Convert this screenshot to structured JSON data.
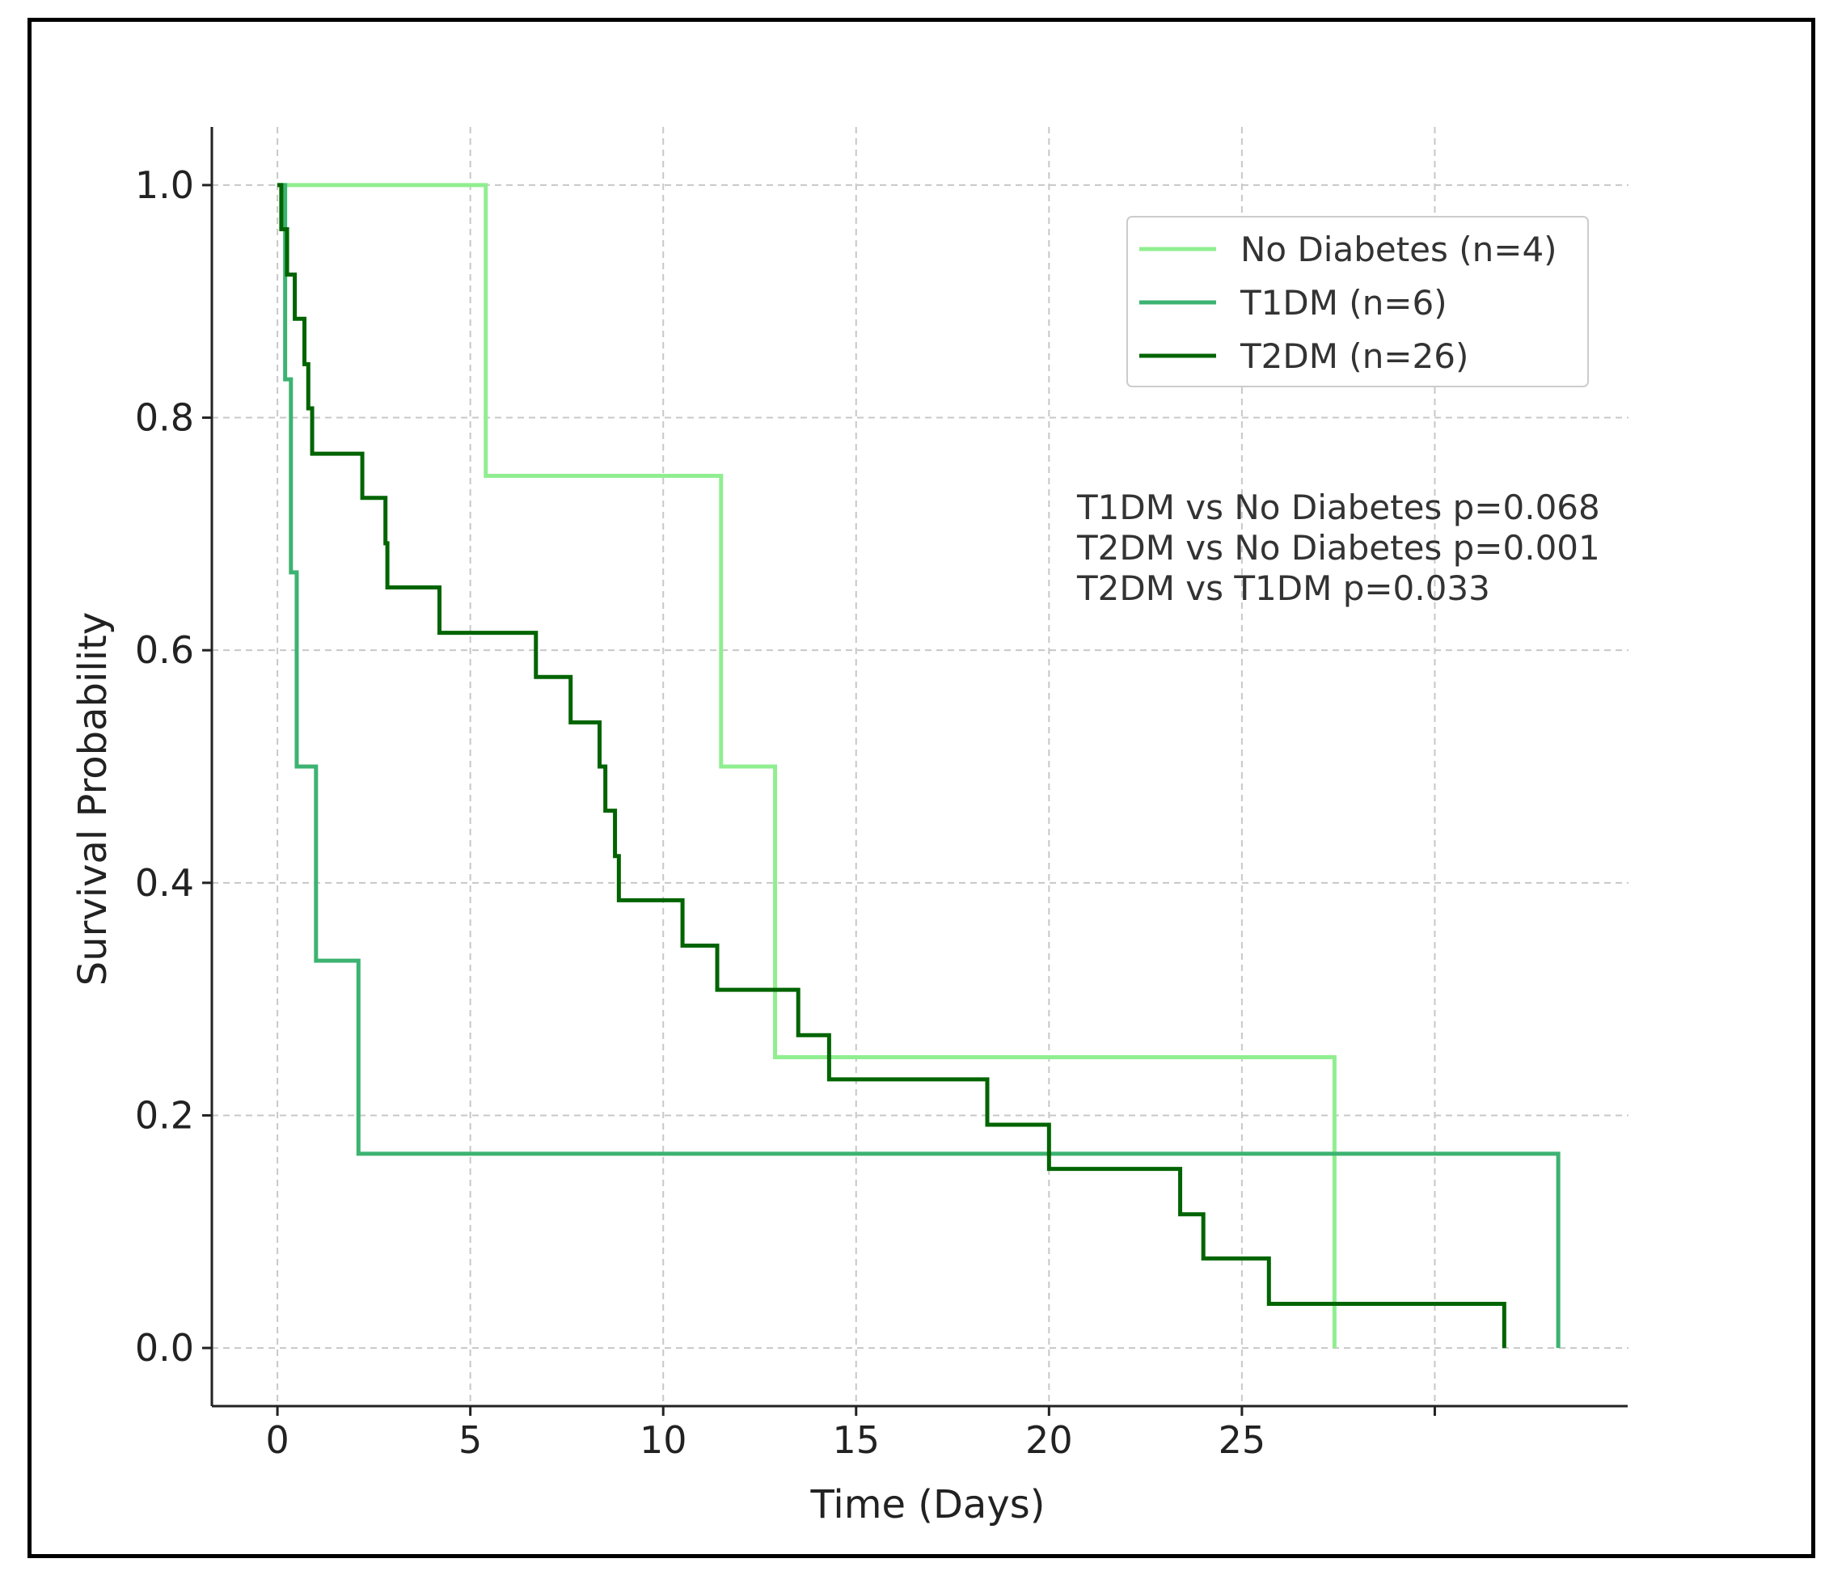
{
  "chart_data": {
    "type": "line",
    "title": "",
    "xlabel": "Time (Days)",
    "ylabel": "Survival Probability",
    "xlim": [
      -1.7,
      35
    ],
    "ylim": [
      -0.05,
      1.05
    ],
    "xticks": [
      0,
      5,
      10,
      15,
      20,
      25,
      30
    ],
    "xtick_labels": [
      "0",
      "5",
      "10",
      "15",
      "20",
      "25",
      ""
    ],
    "yticks": [
      0.0,
      0.2,
      0.4,
      0.6,
      0.8,
      1.0
    ],
    "ytick_labels": [
      "0.0",
      "0.2",
      "0.4",
      "0.6",
      "0.8",
      "1.0"
    ],
    "grid": true,
    "legend_position": "top-right",
    "series": [
      {
        "name": "No Diabetes (n=4)",
        "color": "#90ee90",
        "step": "post",
        "x": [
          0,
          5.4,
          11.5,
          12.9,
          27.4
        ],
        "y": [
          1.0,
          0.75,
          0.5,
          0.25,
          0.0
        ]
      },
      {
        "name": "T1DM (n=6)",
        "color": "#3cb371",
        "step": "post",
        "x": [
          0,
          0.2,
          0.35,
          0.5,
          1.0,
          2.1,
          33.2
        ],
        "y": [
          1.0,
          0.833,
          0.667,
          0.5,
          0.333,
          0.167,
          0.0
        ]
      },
      {
        "name": "T2DM (n=26)",
        "color": "#006400",
        "step": "post",
        "x": [
          0,
          0.1,
          0.25,
          0.45,
          0.7,
          0.8,
          0.9,
          2.2,
          2.8,
          2.85,
          4.2,
          6.7,
          7.6,
          8.35,
          8.5,
          8.75,
          8.85,
          10.5,
          11.4,
          13.5,
          14.3,
          18.4,
          20.0,
          23.4,
          24.0,
          25.7,
          31.8
        ],
        "y": [
          1.0,
          0.962,
          0.923,
          0.885,
          0.846,
          0.808,
          0.769,
          0.731,
          0.692,
          0.654,
          0.615,
          0.577,
          0.538,
          0.5,
          0.462,
          0.423,
          0.385,
          0.346,
          0.308,
          0.269,
          0.231,
          0.192,
          0.154,
          0.115,
          0.077,
          0.038,
          0.0
        ]
      }
    ],
    "annotations": [
      "T1DM vs No Diabetes p=0.068",
      "T2DM vs No Diabetes p=0.001",
      "T2DM vs T1DM p=0.033"
    ]
  }
}
